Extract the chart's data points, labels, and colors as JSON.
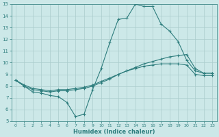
{
  "title": "",
  "xlabel": "Humidex (Indice chaleur)",
  "ylabel": "",
  "xlim": [
    -0.5,
    23.5
  ],
  "ylim": [
    5,
    15
  ],
  "xticks": [
    0,
    1,
    2,
    3,
    4,
    5,
    6,
    7,
    8,
    9,
    10,
    11,
    12,
    13,
    14,
    15,
    16,
    17,
    18,
    19,
    20,
    21,
    22,
    23
  ],
  "yticks": [
    5,
    6,
    7,
    8,
    9,
    10,
    11,
    12,
    13,
    14,
    15
  ],
  "bg_color": "#cce8e8",
  "grid_color": "#aacccc",
  "line_color": "#2e7d7d",
  "lines": [
    {
      "x": [
        0,
        1,
        2,
        3,
        4,
        5,
        6,
        7,
        8,
        9,
        10,
        11,
        12,
        13,
        14,
        15,
        16,
        17,
        18,
        19,
        20,
        21,
        22,
        23
      ],
      "y": [
        8.5,
        8.0,
        7.5,
        7.4,
        7.2,
        7.1,
        6.6,
        5.4,
        5.6,
        7.7,
        9.5,
        11.7,
        13.7,
        13.8,
        15.0,
        14.8,
        14.8,
        13.3,
        12.7,
        11.8,
        10.2,
        9.3,
        9.1,
        9.1
      ]
    },
    {
      "x": [
        0,
        1,
        2,
        3,
        4,
        5,
        6,
        7,
        8,
        9,
        10,
        11,
        12,
        13,
        14,
        15,
        16,
        17,
        18,
        19,
        20,
        21,
        22,
        23
      ],
      "y": [
        8.5,
        8.0,
        7.7,
        7.6,
        7.5,
        7.6,
        7.6,
        7.7,
        7.8,
        8.0,
        8.3,
        8.6,
        9.0,
        9.3,
        9.6,
        9.9,
        10.1,
        10.3,
        10.5,
        10.6,
        10.7,
        9.5,
        9.1,
        9.1
      ]
    },
    {
      "x": [
        0,
        1,
        2,
        3,
        4,
        5,
        6,
        7,
        8,
        9,
        10,
        11,
        12,
        13,
        14,
        15,
        16,
        17,
        18,
        19,
        20,
        21,
        22,
        23
      ],
      "y": [
        8.5,
        8.1,
        7.8,
        7.7,
        7.6,
        7.7,
        7.7,
        7.8,
        7.9,
        8.1,
        8.4,
        8.7,
        9.0,
        9.3,
        9.5,
        9.7,
        9.8,
        9.9,
        9.9,
        9.9,
        9.8,
        9.0,
        8.9,
        8.9
      ]
    }
  ]
}
